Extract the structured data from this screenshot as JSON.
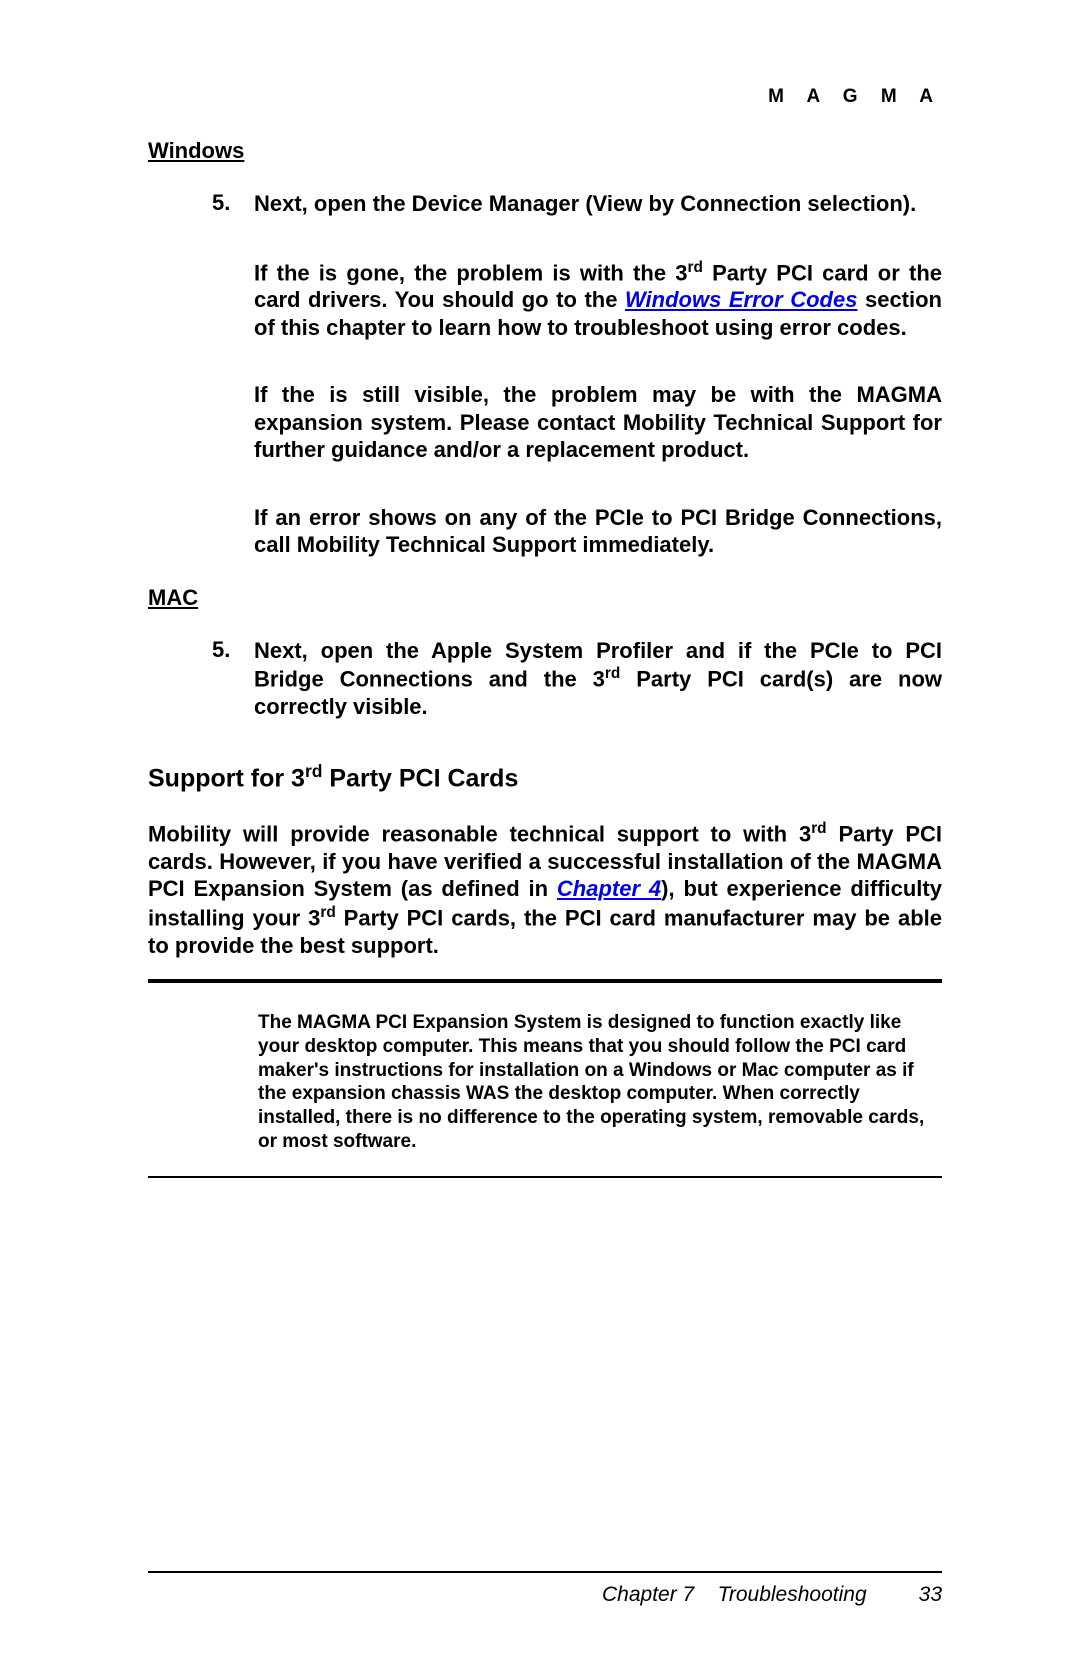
{
  "brand": "M A G M A",
  "sections": {
    "windows": {
      "title": "Windows",
      "item_num": "5.",
      "item_text": "Next, open the Device Manager (View by Connection selection).",
      "p1_a": "If the     is gone, the problem is with the 3",
      "p1_sup": "rd",
      "p1_b": " Party PCI card or the card drivers. You should go to the ",
      "p1_link": "Windows Error Codes",
      "p1_c": " section of this chapter to learn how to troubleshoot using error codes.",
      "p2": "If the     is still visible, the problem may be with the MAGMA expansion system. Please contact Mobility Technical Support for further guidance and/or a replacement product.",
      "p3": "If an error shows on any of the PCIe to PCI Bridge Connections, call Mobility Technical Support immediately."
    },
    "mac": {
      "title": "MAC",
      "item_num": "5.",
      "item_a": "Next, open the Apple System Profiler and if the PCIe to PCI Bridge Connections and the 3",
      "item_sup": "rd",
      "item_b": " Party PCI card(s) are now correctly visible."
    }
  },
  "subhead_a": "Support for 3",
  "subhead_sup": "rd",
  "subhead_b": " Party PCI Cards",
  "body_a": "Mobility will provide reasonable technical support to with 3",
  "body_sup1": "rd",
  "body_b": " Party PCI cards. However, if you have verified a successful installation of the MAGMA PCI Expansion System (as defined in ",
  "body_link": "Chapter 4",
  "body_c": "), but experience difficulty installing your 3",
  "body_sup2": "rd",
  "body_d": " Party PCI cards, the PCI card manufacturer may be able to provide the best support.",
  "note": "The MAGMA PCI Expansion System is designed to function exactly like your desktop computer. This means that you should follow the PCI card maker's instructions for installation on a Windows or Mac computer as if the expansion chassis WAS the desktop computer. When correctly installed, there is no difference to the operating system, removable cards, or most software.",
  "footer": {
    "chapter": "Chapter 7",
    "title": "Troubleshooting",
    "page": "33"
  }
}
